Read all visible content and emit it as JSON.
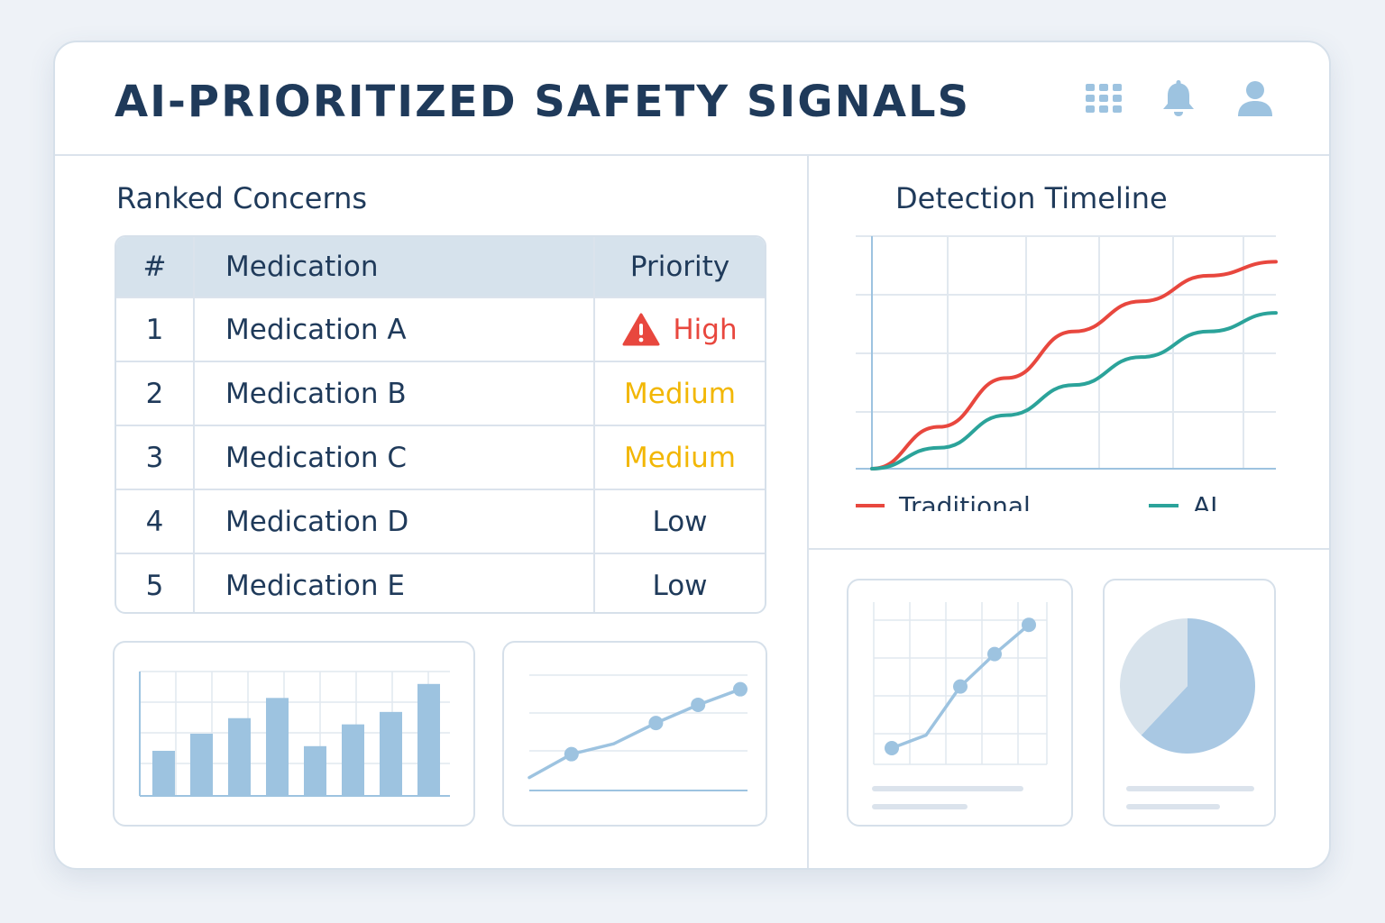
{
  "header": {
    "title": "AI-PRIORITIZED SAFETY SIGNALS",
    "icons": [
      "apps-grid-icon",
      "bell-icon",
      "user-icon"
    ]
  },
  "ranked": {
    "title": "Ranked Concerns",
    "columns": [
      "#",
      "Medication",
      "Priority"
    ],
    "rows": [
      {
        "num": "1",
        "medication": "Medication A",
        "priority": "High",
        "level": "high"
      },
      {
        "num": "2",
        "medication": "Medication B",
        "priority": "Medium",
        "level": "medium"
      },
      {
        "num": "3",
        "medication": "Medication C",
        "priority": "Medium",
        "level": "medium"
      },
      {
        "num": "4",
        "medication": "Medication D",
        "priority": "Low",
        "level": "low"
      },
      {
        "num": "5",
        "medication": "Medication E",
        "priority": "Low",
        "level": "low"
      }
    ]
  },
  "timeline": {
    "title": "Detection Timeline",
    "legend": [
      {
        "name": "Traditional",
        "color": "#e8473e"
      },
      {
        "name": "AI",
        "color": "#2ba39a"
      }
    ]
  },
  "colors": {
    "high": "#e8473e",
    "medium": "#f2b705",
    "low": "#1f3a5a",
    "accent_blue": "#9dc3e0"
  },
  "chart_data": [
    {
      "type": "line",
      "title": "Detection Timeline",
      "x": [
        0,
        1,
        2,
        3,
        4,
        5,
        6
      ],
      "series": [
        {
          "name": "Traditional",
          "values": [
            0,
            0.9,
            1.95,
            2.95,
            3.6,
            4.15,
            4.45
          ]
        },
        {
          "name": "AI",
          "values": [
            0,
            0.45,
            1.15,
            1.8,
            2.4,
            2.95,
            3.35
          ]
        }
      ],
      "ylim": [
        0,
        5
      ],
      "grid": true,
      "legend": "bottom"
    },
    {
      "type": "bar",
      "categories": [
        "",
        "",
        "",
        "",
        "",
        "",
        "",
        ""
      ],
      "values": [
        2.9,
        4.0,
        5.0,
        6.3,
        3.2,
        4.6,
        5.4,
        7.2
      ],
      "ylim": [
        0,
        8
      ],
      "grid": true
    },
    {
      "type": "line",
      "x": [
        0,
        1,
        2,
        3,
        4,
        5
      ],
      "series": [
        {
          "values": [
            0.5,
            1.4,
            1.8,
            2.6,
            3.3,
            3.9
          ]
        }
      ],
      "ylim": [
        0,
        5
      ],
      "grid": true
    },
    {
      "type": "line",
      "x": [
        0,
        1,
        2,
        3,
        4
      ],
      "series": [
        {
          "values": [
            0.5,
            0.9,
            2.4,
            3.4,
            4.3
          ]
        }
      ],
      "ylim": [
        0,
        5
      ],
      "grid": true
    },
    {
      "type": "pie",
      "values": [
        62,
        38
      ]
    }
  ]
}
